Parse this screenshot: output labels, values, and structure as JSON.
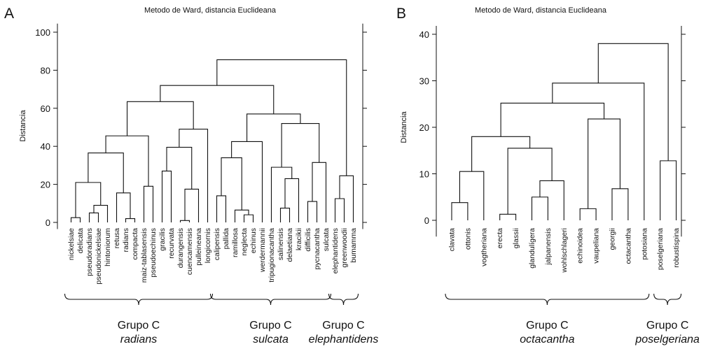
{
  "chart_data": [
    {
      "type": "dendrogram",
      "panel": "A",
      "title": "Metodo de Ward, distancia Euclideana",
      "ylabel": "Distancia",
      "ylim": [
        0,
        100
      ],
      "yticks": [
        0,
        20,
        40,
        60,
        80,
        100
      ],
      "leaves": [
        "nickelsiae",
        "delicata",
        "pseudoradians",
        "pseudonickelsiae",
        "hintoniorum",
        "retusa",
        "radians",
        "compacta",
        "maiz-tablasensis",
        "pseudoechinus",
        "gracilis",
        "recurvata",
        "durangensis",
        "cuencamensis",
        "pulleineana",
        "longicornis",
        "calipensis",
        "pallida",
        "ramillosa",
        "neglecta",
        "echinus",
        "werdermannii",
        "tripugionacantha",
        "salinensis",
        "delaetiana",
        "kracikii",
        "difficilis",
        "pycnacantha",
        "sulcata",
        "elephantidens",
        "greenwoodii",
        "bumamma"
      ],
      "merges": [
        {
          "id": "a1",
          "left": "L1",
          "right": "L2",
          "height": 2.5
        },
        {
          "id": "a2",
          "left": "L3",
          "right": "L4",
          "height": 5
        },
        {
          "id": "a3",
          "left": "a2",
          "right": "L5",
          "height": 9
        },
        {
          "id": "a4",
          "left": "a1",
          "right": "a3",
          "height": 21
        },
        {
          "id": "a5",
          "left": "L7",
          "right": "L8",
          "height": 2
        },
        {
          "id": "a6",
          "left": "L6",
          "right": "a5",
          "height": 15.5
        },
        {
          "id": "a7",
          "left": "a4",
          "right": "a6",
          "height": 36.5
        },
        {
          "id": "a8",
          "left": "L9",
          "right": "L10",
          "height": 19
        },
        {
          "id": "a9",
          "left": "a7",
          "right": "a8",
          "height": 45.5
        },
        {
          "id": "a10",
          "left": "L11",
          "right": "L12",
          "height": 27
        },
        {
          "id": "a11",
          "left": "L13",
          "right": "L14",
          "height": 1
        },
        {
          "id": "a12",
          "left": "a11",
          "right": "L15",
          "height": 17.5
        },
        {
          "id": "a13",
          "left": "a10",
          "right": "a12",
          "height": 39.5
        },
        {
          "id": "a14",
          "left": "a13",
          "right": "L16",
          "height": 49
        },
        {
          "id": "a15",
          "left": "a9",
          "right": "a14",
          "height": 63.5
        },
        {
          "id": "a16",
          "left": "L17",
          "right": "L18",
          "height": 14
        },
        {
          "id": "a17",
          "left": "L20",
          "right": "L21",
          "height": 4
        },
        {
          "id": "a18",
          "left": "a17",
          "right": "L19",
          "height": 6.5
        },
        {
          "id": "a19",
          "left": "a16",
          "right": "a18",
          "height": 34
        },
        {
          "id": "a20",
          "left": "a19",
          "right": "L22",
          "height": 42.5
        },
        {
          "id": "a21",
          "left": "L24",
          "right": "L25",
          "height": 7.5
        },
        {
          "id": "a22",
          "left": "a21",
          "right": "L26",
          "height": 23
        },
        {
          "id": "a23",
          "left": "L23",
          "right": "a22",
          "height": 29
        },
        {
          "id": "a24",
          "left": "L27",
          "right": "L28",
          "height": 11
        },
        {
          "id": "a25",
          "left": "a24",
          "right": "L29",
          "height": 31.5
        },
        {
          "id": "a26",
          "left": "a23",
          "right": "a25",
          "height": 52
        },
        {
          "id": "a27",
          "left": "a20",
          "right": "a26",
          "height": 57
        },
        {
          "id": "a28",
          "left": "a15",
          "right": "a27",
          "height": 72
        },
        {
          "id": "a29",
          "left": "L30",
          "right": "L31",
          "height": 12.5
        },
        {
          "id": "a30",
          "left": "a29",
          "right": "L32",
          "height": 24.5
        },
        {
          "id": "a31",
          "left": "a28",
          "right": "a30",
          "height": 85.5
        }
      ],
      "groups": [
        {
          "name": "Grupo C",
          "sub": "radians",
          "first_leaf": 1,
          "last_leaf": 16
        },
        {
          "name": "Grupo C",
          "sub": "sulcata",
          "first_leaf": 17,
          "last_leaf": 29
        },
        {
          "name": "Grupo C",
          "sub": "elephantidens",
          "first_leaf": 30,
          "last_leaf": 32
        }
      ]
    },
    {
      "type": "dendrogram",
      "panel": "B",
      "title": "Metodo de Ward, distancia Euclideana",
      "ylabel": "Distancia",
      "ylim": [
        0,
        40
      ],
      "yticks": [
        0,
        10,
        20,
        30,
        40
      ],
      "leaves": [
        "clavata",
        "ottonis",
        "vogtheriana",
        "erecta",
        "glassii",
        "glandulígera",
        "jalpanensis",
        "wohlschlageri",
        "echinoidea",
        "vaupeliana",
        "georgii",
        "octacantha",
        "potosiana",
        "poselgeriana",
        "robustispina"
      ],
      "merges": [
        {
          "id": "b1",
          "left": "L1",
          "right": "L2",
          "height": 3.8
        },
        {
          "id": "b2",
          "left": "b1",
          "right": "L3",
          "height": 10.5
        },
        {
          "id": "b3",
          "left": "L4",
          "right": "L5",
          "height": 1.3
        },
        {
          "id": "b4",
          "left": "L6",
          "right": "L7",
          "height": 5
        },
        {
          "id": "b5",
          "left": "b4",
          "right": "L8",
          "height": 8.5
        },
        {
          "id": "b6",
          "left": "b3",
          "right": "b5",
          "height": 15.5
        },
        {
          "id": "b7",
          "left": "b2",
          "right": "b6",
          "height": 18
        },
        {
          "id": "b8",
          "left": "L9",
          "right": "L10",
          "height": 2.5
        },
        {
          "id": "b9",
          "left": "L11",
          "right": "L12",
          "height": 6.8
        },
        {
          "id": "b10",
          "left": "b8",
          "right": "b9",
          "height": 21.8
        },
        {
          "id": "b11",
          "left": "b7",
          "right": "b10",
          "height": 25.2
        },
        {
          "id": "b12",
          "left": "b11",
          "right": "L13",
          "height": 29.5
        },
        {
          "id": "b13",
          "left": "L14",
          "right": "L15",
          "height": 12.8
        },
        {
          "id": "b14",
          "left": "b12",
          "right": "b13",
          "height": 38
        }
      ],
      "groups": [
        {
          "name": "Grupo C",
          "sub": "octacantha",
          "first_leaf": 1,
          "last_leaf": 13
        },
        {
          "name": "Grupo C",
          "sub": "poselgeriana",
          "first_leaf": 14,
          "last_leaf": 15
        }
      ]
    }
  ]
}
